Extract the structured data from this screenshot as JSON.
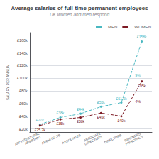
{
  "chart_data": {
    "type": "line",
    "title": "Average salaries of full-time permanent employees",
    "subtitle": "UK women and men respond",
    "y_label": "SALARY PER ANNUM",
    "categories": [
      "ARCHITECTURAL\nASSISTANT",
      "ARCHITECTS",
      "ASSOCIATES",
      "ASSOCIATE\nDIRECTORS",
      "DIRECTORS",
      "PARTNERS/\nPRINCIPALS"
    ],
    "series": [
      {
        "name": "MEN",
        "color": "#4ab8c1",
        "line_style": "dashed",
        "marker": "circle",
        "values": [
          27000,
          38000,
          44000,
          55000,
          61500,
          158000
        ],
        "value_labels": [
          "£27k",
          "£38k",
          "£44k",
          "£55k",
          "£61.5k",
          "£158k"
        ]
      },
      {
        "name": "WOMEN",
        "color": "#7d1a24",
        "line_style": "dashed",
        "marker": "circle",
        "values": [
          25200,
          35000,
          38000,
          45000,
          40000,
          95000
        ],
        "value_labels": [
          "£25.2k",
          "£35k",
          "£38k",
          "£45k",
          "£40k",
          "£95k"
        ]
      }
    ],
    "ylim": [
      15000,
      172000
    ],
    "yticks": [
      {
        "value": 20000,
        "label": "£20k"
      },
      {
        "value": 40000,
        "label": "£40k"
      },
      {
        "value": 60000,
        "label": "£60k"
      },
      {
        "value": 80000,
        "label": "£80k"
      },
      {
        "value": 100000,
        "label": "£100k"
      },
      {
        "value": 120000,
        "label": "£120k"
      },
      {
        "value": 140000,
        "label": "£140k"
      },
      {
        "value": 160000,
        "label": "£160k"
      }
    ],
    "grid": true,
    "legend": "upper right",
    "data_labels": true,
    "annotations": [
      {
        "text": "9%",
        "series": "MEN"
      },
      {
        "text": "4%",
        "series": "WOMEN"
      }
    ]
  }
}
